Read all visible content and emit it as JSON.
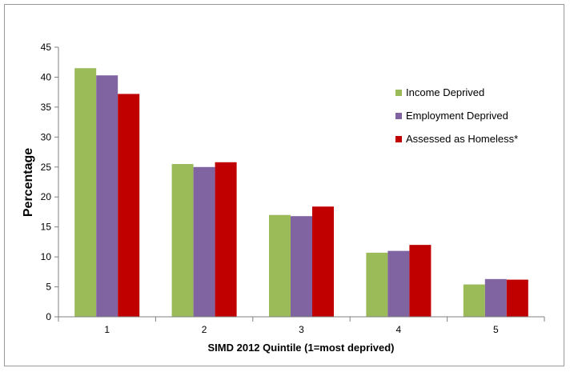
{
  "chart_data": {
    "type": "bar",
    "title": "",
    "xlabel": "SIMD 2012 Quintile (1=most deprived)",
    "ylabel": "Percentage",
    "ylim": [
      0,
      45
    ],
    "yticks": [
      0,
      5,
      10,
      15,
      20,
      25,
      30,
      35,
      40,
      45
    ],
    "categories": [
      "1",
      "2",
      "3",
      "4",
      "5"
    ],
    "grid": false,
    "legend_position": "right",
    "series": [
      {
        "name": "Income Deprived",
        "color": "#9bbb59",
        "values": [
          41.5,
          25.5,
          17.0,
          10.7,
          5.4
        ]
      },
      {
        "name": "Employment Deprived",
        "color": "#8064a2",
        "values": [
          40.3,
          25.0,
          16.8,
          11.0,
          6.3
        ]
      },
      {
        "name": "Assessed as Homeless*",
        "color": "#c00000",
        "values": [
          37.2,
          25.8,
          18.4,
          12.0,
          6.2
        ]
      }
    ]
  }
}
